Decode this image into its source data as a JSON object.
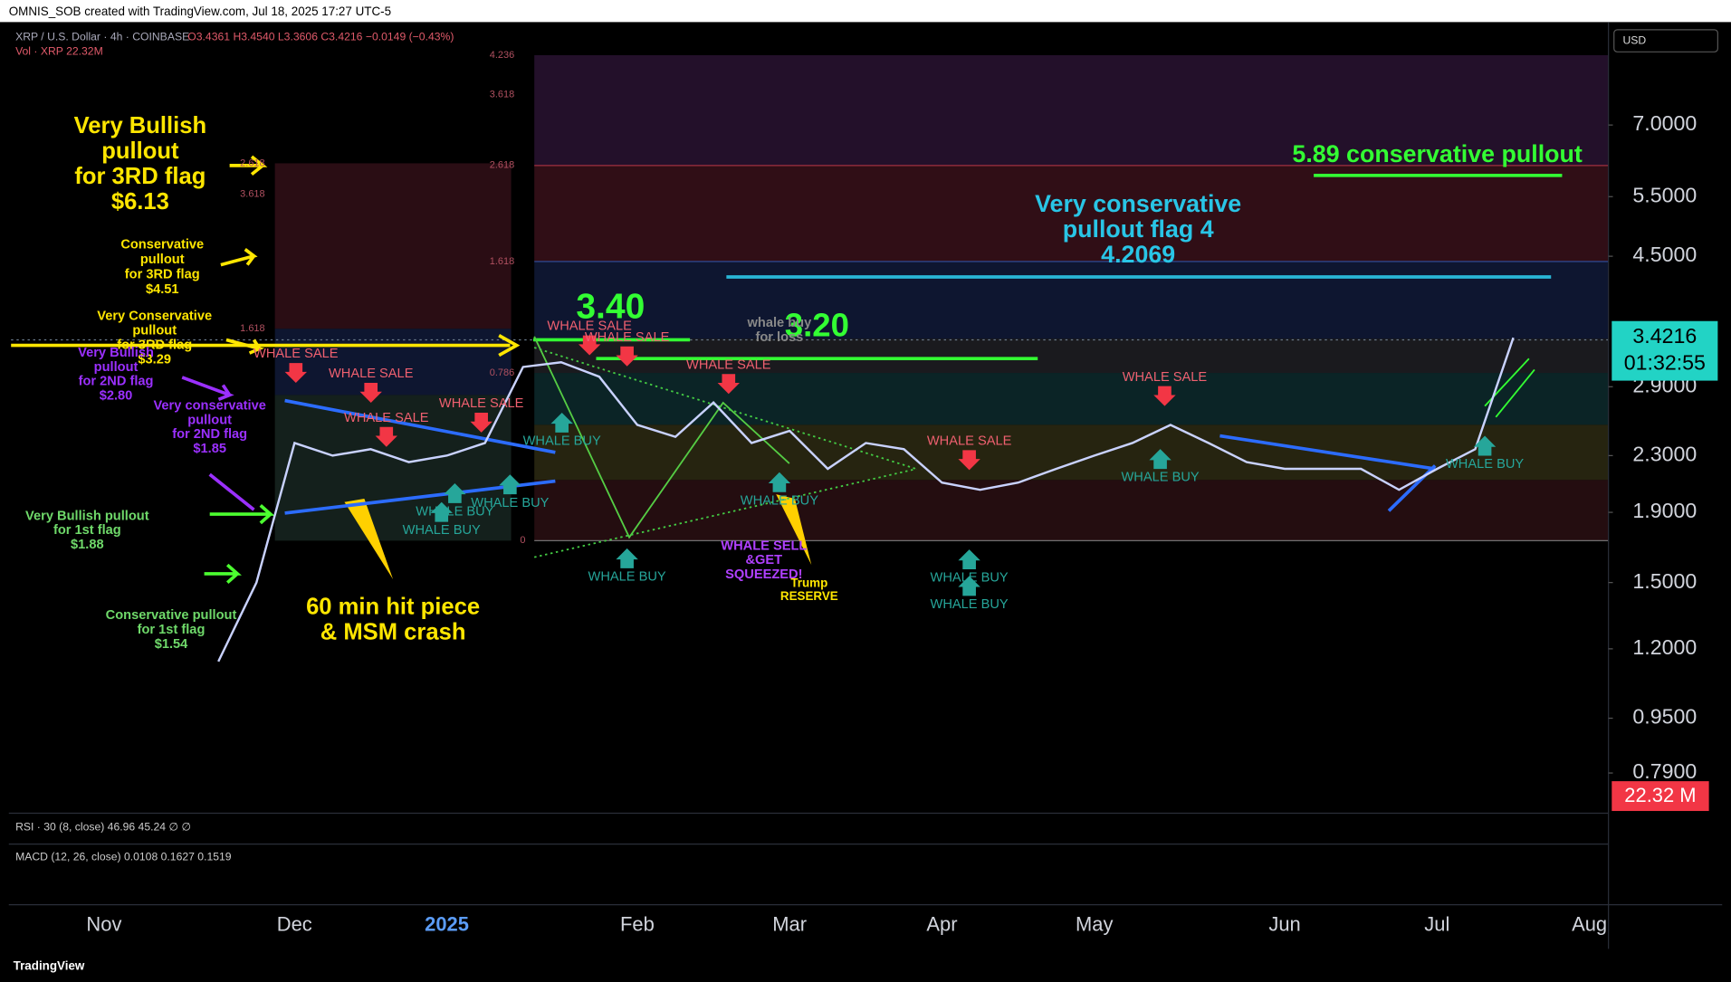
{
  "header": "OMNIS_SOB created with TradingView.com, Jul 18, 2025 17:27 UTC-5",
  "chart_data": {
    "type": "line",
    "log_scale": true,
    "title": "XRP / U.S. Dollar · 4h · COINBASE",
    "ohlc": "O3.4361 H3.4540 L3.3606 C3.4216 −0.0149 (−0.43%)",
    "volume_legend": "Vol · XRP 22.32M",
    "currency": "USD",
    "categories": [
      null,
      null,
      "Nov",
      null,
      null,
      null,
      null,
      "Dec",
      null,
      null,
      null,
      "2025",
      null,
      null,
      null,
      null,
      "Feb",
      null,
      null,
      null,
      "Mar",
      null,
      null,
      null,
      "Apr",
      null,
      null,
      null,
      "May",
      null,
      null,
      null,
      null,
      "Jun",
      null,
      null,
      null,
      "Jul",
      null,
      null,
      null,
      "Aug"
    ],
    "series": [
      {
        "name": "XRP",
        "color": "#c9d2ff",
        "values": [
          null,
          null,
          null,
          null,
          null,
          1.15,
          1.5,
          2.4,
          2.3,
          2.35,
          2.25,
          2.3,
          2.4,
          3.1,
          3.15,
          3.0,
          2.55,
          2.45,
          2.75,
          2.4,
          2.5,
          2.2,
          2.4,
          2.35,
          2.1,
          2.05,
          2.1,
          2.2,
          2.3,
          2.4,
          2.55,
          2.4,
          2.25,
          2.2,
          2.2,
          2.2,
          2.05,
          2.2,
          2.35,
          3.42,
          null,
          null
        ]
      }
    ],
    "ylim": [
      0.69,
      9.9
    ],
    "yticks": [
      {
        "value": 0.79,
        "label": "0.7900"
      },
      {
        "value": 0.95,
        "label": "0.9500"
      },
      {
        "value": 1.2,
        "label": "1.2000"
      },
      {
        "value": 1.5,
        "label": "1.5000"
      },
      {
        "value": 1.9,
        "label": "1.9000"
      },
      {
        "value": 2.3,
        "label": "2.3000"
      },
      {
        "value": 2.9,
        "label": "2.9000"
      },
      {
        "value": 4.5,
        "label": "4.5000"
      },
      {
        "value": 5.5,
        "label": "5.5000"
      },
      {
        "value": 7.0,
        "label": "7.0000"
      }
    ],
    "grid": false,
    "last_price": 3.4216,
    "countdown": "01:32:55",
    "volume_last": "22.32 M",
    "indicators": [
      "RSI · 30 (8, close) 46.96 45.24 ∅ ∅",
      "MACD (12, 26, close) 0.0108 0.1627 0.1519"
    ],
    "annotations": [
      [
        "Very Bullish",
        "pullout",
        "for 3RD flag",
        "$6.13"
      ],
      [
        "Conservative",
        "pullout",
        "for 3RD flag",
        "$4.51"
      ],
      [
        "Very Conservative",
        "pullout",
        "for 3RD flag",
        "$3.29"
      ],
      [
        "Very Bullish",
        "pullout",
        "for 2ND flag",
        "$2.80"
      ],
      [
        "Very conservative",
        "pullout",
        "for 2ND flag",
        "$1.85"
      ],
      [
        "Very Bullish pullout",
        "for 1st flag",
        "$1.88"
      ],
      [
        "Conservative pullout",
        "for 1st flag",
        "$1.54"
      ],
      [
        "60 min hit piece",
        "& MSM crash"
      ],
      [
        "3.40"
      ],
      [
        "3.20"
      ],
      [
        "5.89 conservative pullout"
      ],
      [
        "Very conservative",
        "pullout flag 4",
        "4.2069"
      ],
      [
        "whale buy",
        "for loss"
      ],
      [
        "Trump",
        "RESERVE"
      ],
      [
        "WHALE SELL",
        "&GET",
        "SQUEEZED!"
      ]
    ],
    "whale_sale": [
      "WHALE SALE",
      "WHALE SALE",
      "WHALE SALE",
      "WHALE SALE",
      "WHALE SALE",
      "WHALE SALE",
      "WHALE SALE",
      "WHALE SALE",
      "WHALE SALE"
    ],
    "whale_buy": [
      "WHALE BUY",
      "WHALE BUY",
      "WHALE BUY",
      "WHALE BUY",
      "WHALE BUY",
      "WHALE BUY",
      "WHALE BUY",
      "WHALE BUY",
      "WHALE BUY",
      "WHALE BUY"
    ],
    "fib_labels": [
      "4.236",
      "3.618",
      "2.618",
      "1.618",
      "0.786",
      "0",
      "3.618",
      "2.618",
      "1.618"
    ],
    "footer": "TradingView"
  }
}
